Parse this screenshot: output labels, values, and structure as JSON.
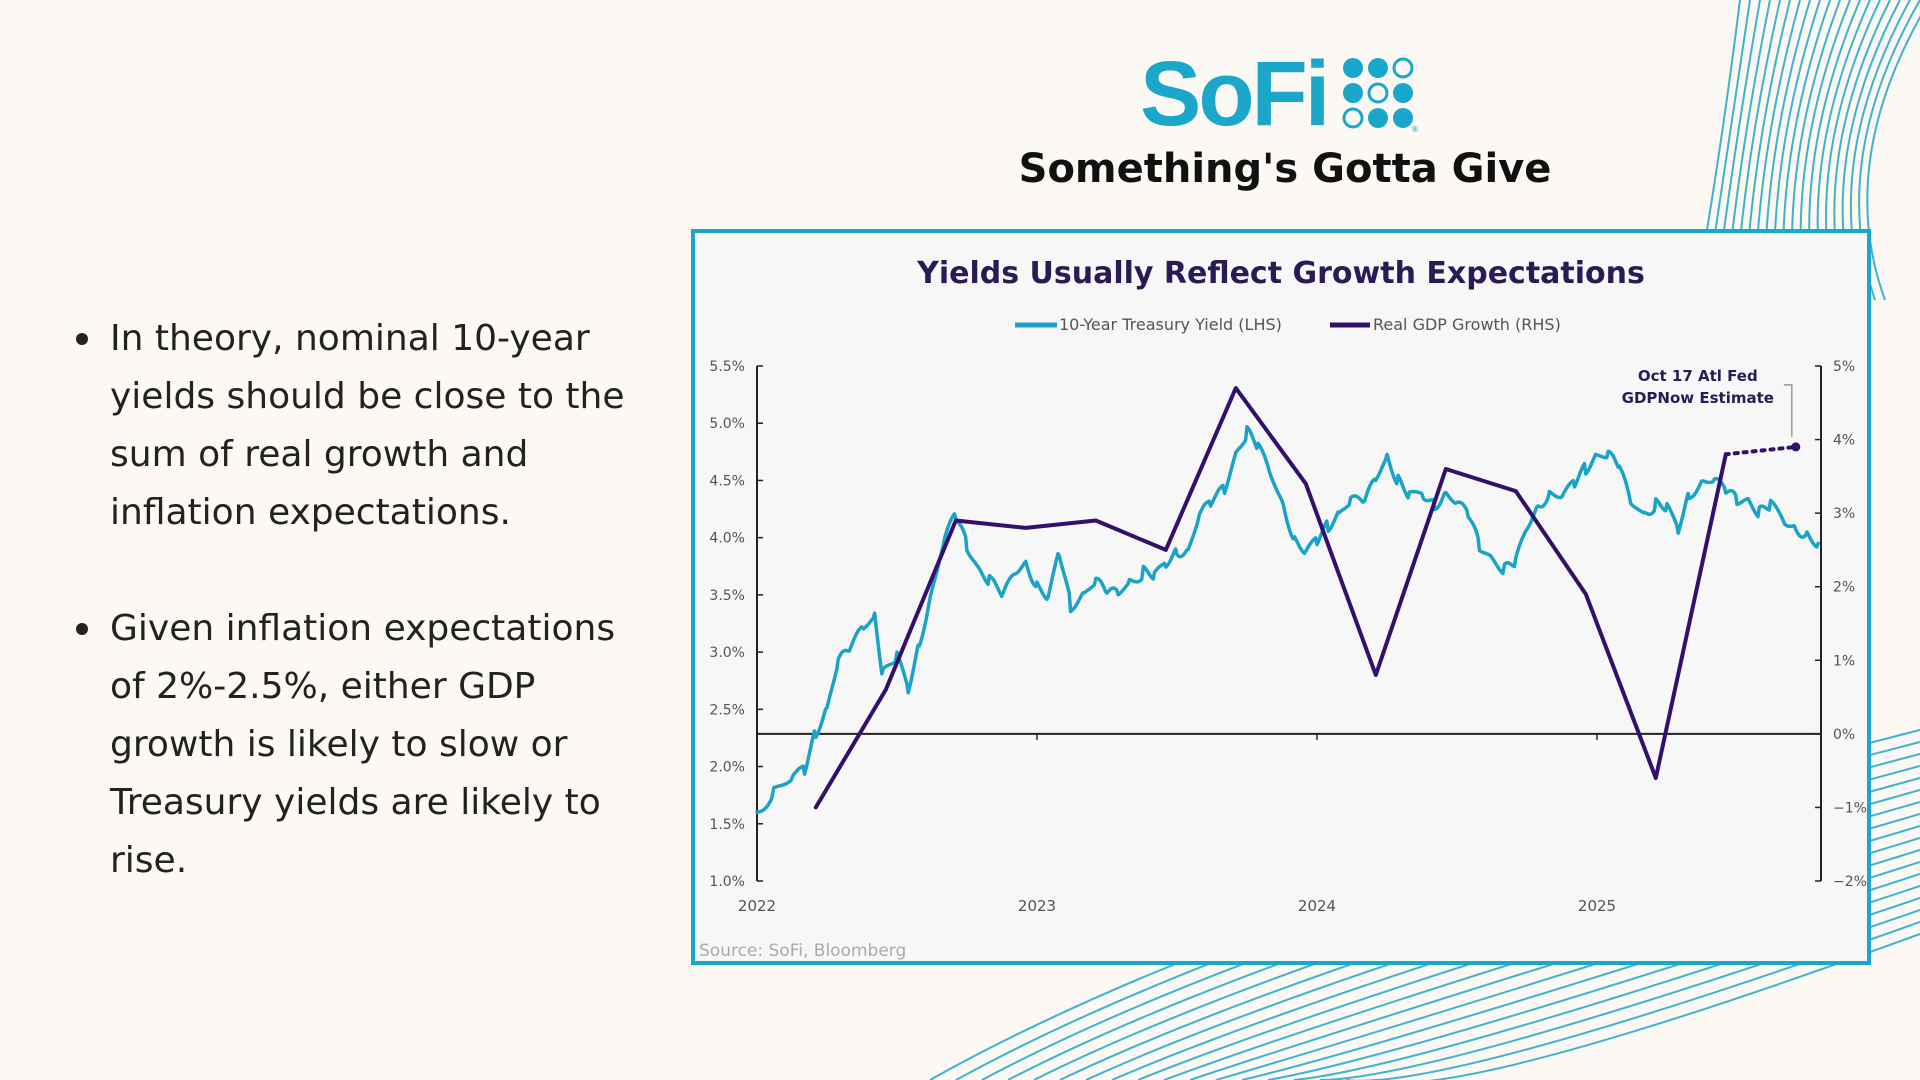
{
  "logo": {
    "wordmark": "SoFi",
    "registered_mark": "®"
  },
  "page": {
    "title": "Something's Gotta Give"
  },
  "bullets": [
    "In theory, nominal 10-year yields should be close to the sum of real growth and inflation expectations.",
    "Given inflation expectations of 2%-2.5%, either GDP growth is likely to slow or Treasury yields are likely to rise."
  ],
  "colors": {
    "brand": "#1ba7c9",
    "yield_line": "#1aa3c6",
    "gdp_line": "#33106b",
    "title_text": "#2a1a55"
  },
  "chart_data": {
    "type": "line",
    "title": "Yields Usually Reflect Growth Expectations",
    "legend": [
      "10-Year Treasury Yield (LHS)",
      "Real GDP Growth (RHS)"
    ],
    "legend_position": "top-center",
    "source": "Source: SoFi, Bloomberg",
    "x_range": [
      2022.0,
      2025.8
    ],
    "x_ticks": [
      {
        "value": 2022,
        "label": "2022"
      },
      {
        "value": 2023,
        "label": "2023"
      },
      {
        "value": 2024,
        "label": "2024"
      },
      {
        "value": 2025,
        "label": "2025"
      }
    ],
    "y_left": {
      "range": [
        1.0,
        5.5
      ],
      "ticks": [
        {
          "value": 5.5,
          "label": "5.5%"
        },
        {
          "value": 5.0,
          "label": "5.0%"
        },
        {
          "value": 4.5,
          "label": "4.5%"
        },
        {
          "value": 4.0,
          "label": "4.0%"
        },
        {
          "value": 3.5,
          "label": "3.5%"
        },
        {
          "value": 3.0,
          "label": "3.0%"
        },
        {
          "value": 2.5,
          "label": "2.5%"
        },
        {
          "value": 2.0,
          "label": "2.0%"
        },
        {
          "value": 1.5,
          "label": "1.5%"
        },
        {
          "value": 1.0,
          "label": "1.0%"
        }
      ]
    },
    "y_right": {
      "range": [
        -2,
        5
      ],
      "ticks": [
        {
          "value": 5,
          "label": "5%"
        },
        {
          "value": 4,
          "label": "4%"
        },
        {
          "value": 3,
          "label": "3%"
        },
        {
          "value": 2,
          "label": "2%"
        },
        {
          "value": 1,
          "label": "1%"
        },
        {
          "value": 0,
          "label": "0%"
        },
        {
          "value": -1,
          "label": "−1%"
        },
        {
          "value": -2,
          "label": "−2%"
        }
      ]
    },
    "series": [
      {
        "name": "10-Year Treasury Yield (LHS)",
        "axis": "left",
        "x": [
          2022.0,
          2022.06,
          2022.13,
          2022.17,
          2022.21,
          2022.25,
          2022.29,
          2022.33,
          2022.38,
          2022.42,
          2022.45,
          2022.5,
          2022.54,
          2022.58,
          2022.62,
          2022.67,
          2022.71,
          2022.75,
          2022.79,
          2022.83,
          2022.88,
          2022.92,
          2022.96,
          2023.0,
          2023.04,
          2023.08,
          2023.12,
          2023.17,
          2023.21,
          2023.25,
          2023.29,
          2023.33,
          2023.38,
          2023.42,
          2023.46,
          2023.5,
          2023.54,
          2023.58,
          2023.62,
          2023.67,
          2023.71,
          2023.75,
          2023.79,
          2023.83,
          2023.88,
          2023.92,
          2023.96,
          2024.0,
          2024.04,
          2024.08,
          2024.12,
          2024.17,
          2024.21,
          2024.25,
          2024.29,
          2024.33,
          2024.38,
          2024.42,
          2024.46,
          2024.5,
          2024.54,
          2024.58,
          2024.62,
          2024.67,
          2024.71,
          2024.75,
          2024.79,
          2024.83,
          2024.88,
          2024.92,
          2024.96,
          2025.0,
          2025.04,
          2025.08,
          2025.12,
          2025.17,
          2025.21,
          2025.25,
          2025.29,
          2025.33,
          2025.38,
          2025.42,
          2025.46,
          2025.5,
          2025.54,
          2025.58,
          2025.62,
          2025.67,
          2025.71,
          2025.75,
          2025.79
        ],
        "values": [
          1.6,
          1.8,
          1.95,
          2.0,
          2.3,
          2.5,
          2.9,
          3.0,
          3.2,
          3.3,
          2.8,
          3.0,
          2.7,
          3.1,
          3.5,
          4.0,
          4.2,
          3.9,
          3.7,
          3.6,
          3.5,
          3.7,
          3.8,
          3.6,
          3.5,
          3.9,
          3.4,
          3.5,
          3.6,
          3.5,
          3.5,
          3.6,
          3.7,
          3.7,
          3.8,
          3.9,
          3.9,
          4.2,
          4.3,
          4.4,
          4.7,
          4.9,
          4.8,
          4.6,
          4.3,
          4.0,
          3.9,
          4.0,
          4.1,
          4.2,
          4.3,
          4.3,
          4.5,
          4.7,
          4.5,
          4.4,
          4.4,
          4.3,
          4.4,
          4.3,
          4.2,
          3.9,
          3.8,
          3.7,
          3.8,
          4.1,
          4.3,
          4.4,
          4.4,
          4.5,
          4.6,
          4.7,
          4.7,
          4.6,
          4.3,
          4.2,
          4.3,
          4.3,
          4.1,
          4.4,
          4.5,
          4.5,
          4.4,
          4.3,
          4.3,
          4.2,
          4.3,
          4.15,
          4.1,
          4.05,
          3.95
        ]
      },
      {
        "name": "Real GDP Growth (RHS)",
        "axis": "right",
        "x": [
          2022.21,
          2022.46,
          2022.71,
          2022.96,
          2023.21,
          2023.46,
          2023.71,
          2023.96,
          2024.21,
          2024.46,
          2024.71,
          2024.96,
          2025.21,
          2025.46
        ],
        "values": [
          -1.0,
          0.6,
          2.9,
          2.8,
          2.9,
          2.5,
          4.7,
          3.4,
          0.8,
          3.6,
          3.3,
          1.9,
          -0.6,
          3.8
        ]
      },
      {
        "name": "Oct 17 Atl Fed GDPNow Estimate",
        "axis": "right",
        "style": "dotted",
        "x": [
          2025.46,
          2025.71
        ],
        "values": [
          3.8,
          3.9
        ]
      }
    ],
    "annotations": [
      {
        "text_line1": "Oct 17 Atl Fed",
        "text_line2": "GDPNow Estimate",
        "x": 2025.71,
        "value": 3.9,
        "axis": "right"
      }
    ]
  }
}
